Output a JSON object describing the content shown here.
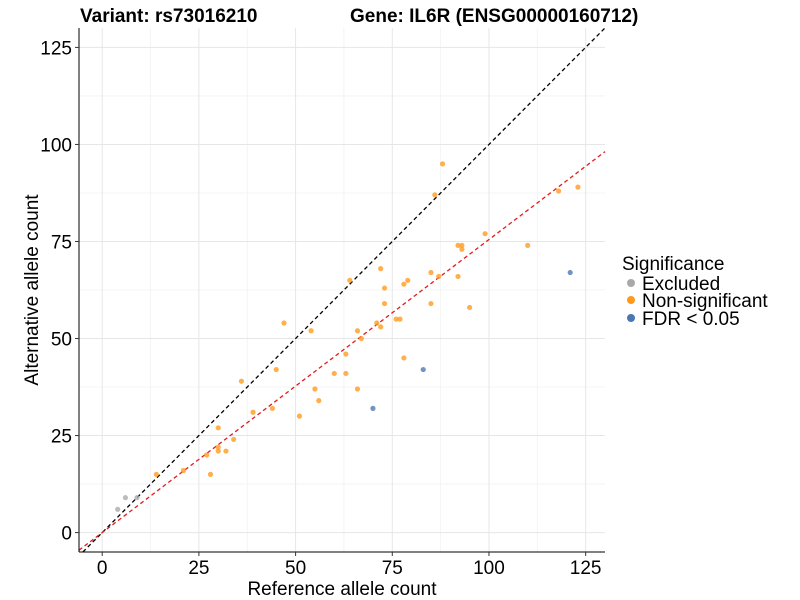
{
  "chart_data": {
    "type": "scatter",
    "title_left": "Variant: rs73016210",
    "title_right": "Gene: IL6R (ENSG00000160712)",
    "xlabel": "Reference allele count",
    "ylabel": "Alternative allele count",
    "xlim": [
      -6,
      130
    ],
    "ylim": [
      -5,
      130
    ],
    "xticks": [
      0,
      25,
      50,
      75,
      100,
      125
    ],
    "yticks": [
      0,
      25,
      50,
      75,
      100,
      125
    ],
    "grid": true,
    "legend": {
      "title": "Significance",
      "position": "right",
      "entries": [
        {
          "label": "Excluded",
          "color": "#a9a9a9"
        },
        {
          "label": "Non-significant",
          "color": "#ff9a1a"
        },
        {
          "label": "FDR < 0.05",
          "color": "#4a76b3"
        }
      ]
    },
    "reference_lines": [
      {
        "slope": 1.0,
        "intercept": 0,
        "color": "#000000",
        "style": "dashed"
      },
      {
        "slope": 0.755,
        "intercept": 0,
        "color": "#e41a1c",
        "style": "dashed"
      }
    ],
    "series": [
      {
        "name": "Excluded",
        "color": "#a9a9a9",
        "points": [
          [
            4,
            6
          ],
          [
            6,
            9
          ],
          [
            9,
            9
          ]
        ]
      },
      {
        "name": "Non-significant",
        "color": "#ff9a1a",
        "points": [
          [
            14,
            15
          ],
          [
            21,
            16
          ],
          [
            27,
            20
          ],
          [
            28,
            15
          ],
          [
            30,
            21
          ],
          [
            30,
            22
          ],
          [
            30,
            27
          ],
          [
            32,
            21
          ],
          [
            34,
            24
          ],
          [
            36,
            39
          ],
          [
            39,
            31
          ],
          [
            44,
            32
          ],
          [
            45,
            42
          ],
          [
            47,
            54
          ],
          [
            51,
            30
          ],
          [
            54,
            52
          ],
          [
            55,
            37
          ],
          [
            56,
            34
          ],
          [
            60,
            41
          ],
          [
            63,
            46
          ],
          [
            63,
            41
          ],
          [
            64,
            65
          ],
          [
            66,
            52
          ],
          [
            66,
            37
          ],
          [
            67,
            50
          ],
          [
            71,
            54
          ],
          [
            72,
            53
          ],
          [
            72,
            68
          ],
          [
            73,
            63
          ],
          [
            73,
            59
          ],
          [
            76,
            55
          ],
          [
            77,
            55
          ],
          [
            78,
            64
          ],
          [
            78,
            45
          ],
          [
            79,
            65
          ],
          [
            85,
            67
          ],
          [
            85,
            59
          ],
          [
            86,
            87
          ],
          [
            87,
            66
          ],
          [
            88,
            95
          ],
          [
            92,
            74
          ],
          [
            92,
            66
          ],
          [
            93,
            74
          ],
          [
            93,
            73
          ],
          [
            95,
            58
          ],
          [
            99,
            77
          ],
          [
            110,
            74
          ],
          [
            118,
            88
          ],
          [
            123,
            89
          ]
        ]
      },
      {
        "name": "FDR < 0.05",
        "color": "#4a76b3",
        "points": [
          [
            70,
            32
          ],
          [
            83,
            42
          ],
          [
            121,
            67
          ]
        ]
      }
    ]
  }
}
